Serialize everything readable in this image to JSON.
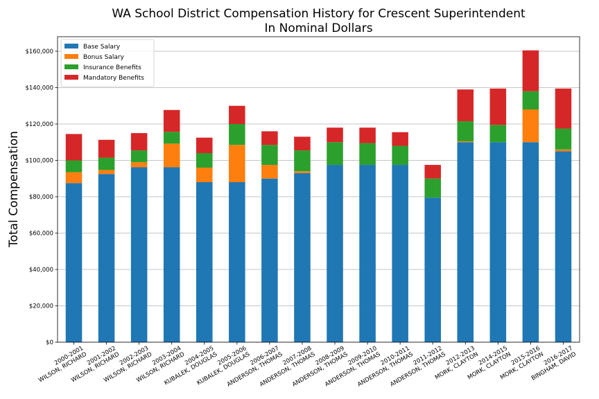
{
  "chart_data": {
    "type": "bar",
    "stacked": true,
    "title": "WA School District Compensation History for Crescent Superintendent",
    "subtitle": "In Nominal Dollars",
    "xlabel": "",
    "ylabel": "Total Compensation",
    "ylim": [
      0,
      168000
    ],
    "yticks": [
      0,
      20000,
      40000,
      60000,
      80000,
      100000,
      120000,
      140000,
      160000
    ],
    "ytick_labels": [
      "$0",
      "$20,000",
      "$40,000",
      "$60,000",
      "$80,000",
      "$100,000",
      "$120,000",
      "$140,000",
      "$160,000"
    ],
    "grid": true,
    "legend_position": "top-left",
    "categories": [
      [
        "2000-2001",
        "WILSON, RICHARD"
      ],
      [
        "2001-2002",
        "WILSON, RICHARD"
      ],
      [
        "2002-2003",
        "WILSON, RICHARD"
      ],
      [
        "2003-2004",
        "WILSON, RICHARD"
      ],
      [
        "2004-2005",
        "KUBALEK, DOUGLAS"
      ],
      [
        "2005-2006",
        "KUBALEK, DOUGLAS"
      ],
      [
        "2006-2007",
        "ANDERSON, THOMAS"
      ],
      [
        "2007-2008",
        "ANDERSON, THOMAS"
      ],
      [
        "2008-2009",
        "ANDERSON, THOMAS"
      ],
      [
        "2009-2010",
        "ANDERSON, THOMAS"
      ],
      [
        "2010-2011",
        "ANDERSON, THOMAS"
      ],
      [
        "2011-2012",
        "ANDERSON, THOMAS"
      ],
      [
        "2012-2013",
        "MORK, CLAYTON"
      ],
      [
        "2014-2015",
        "MORK, CLAYTON"
      ],
      [
        "2015-2016",
        "MORK, CLAYTON"
      ],
      [
        "2016-2017",
        "BINGHAM, DAVID"
      ]
    ],
    "series": [
      {
        "name": "Base Salary",
        "color": "#1f77b4",
        "values": [
          87500,
          92500,
          96200,
          96200,
          88000,
          88000,
          90000,
          93000,
          97500,
          97500,
          97500,
          79500,
          110000,
          110000,
          110000,
          105000
        ]
      },
      {
        "name": "Bonus Salary",
        "color": "#ff7f0e",
        "values": [
          6000,
          2200,
          2800,
          13000,
          8000,
          20500,
          7500,
          1000,
          0,
          0,
          0,
          0,
          500,
          0,
          18000,
          1000
        ]
      },
      {
        "name": "Insurance Benefits",
        "color": "#2ca02c",
        "values": [
          6500,
          6800,
          6500,
          6500,
          8000,
          11500,
          11000,
          11500,
          12500,
          12000,
          10500,
          10500,
          11000,
          9500,
          10000,
          11500
        ]
      },
      {
        "name": "Mandatory Benefits",
        "color": "#d62728",
        "values": [
          14500,
          9800,
          9500,
          12000,
          8500,
          10000,
          7500,
          7500,
          8000,
          8500,
          7500,
          7500,
          17500,
          20000,
          22500,
          22000
        ]
      }
    ]
  }
}
